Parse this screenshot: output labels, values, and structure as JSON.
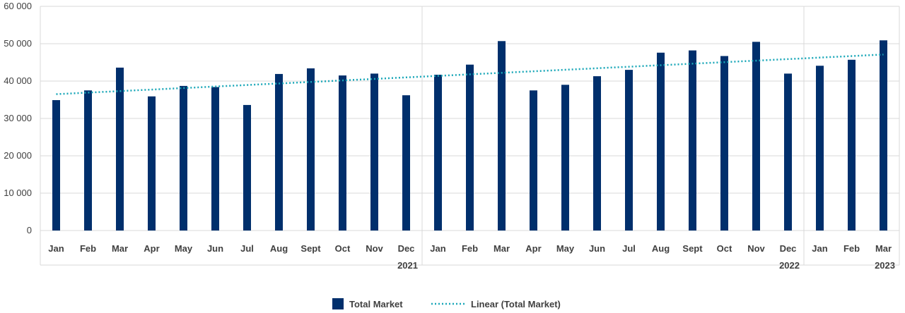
{
  "chart_data": {
    "type": "bar",
    "title": "",
    "xlabel": "",
    "ylabel": "",
    "ylim": [
      0,
      60000
    ],
    "yticks": [
      0,
      10000,
      20000,
      30000,
      40000,
      50000,
      60000
    ],
    "ytick_labels": [
      "0",
      "10 000",
      "20 000",
      "30 000",
      "40 000",
      "50 000",
      "60 000"
    ],
    "grid": true,
    "legend_position": "bottom",
    "categories": [
      "Jan",
      "Feb",
      "Mar",
      "Apr",
      "May",
      "Jun",
      "Jul",
      "Aug",
      "Sept",
      "Oct",
      "Nov",
      "Dec",
      "Jan",
      "Feb",
      "Mar",
      "Apr",
      "May",
      "Jun",
      "Jul",
      "Aug",
      "Sept",
      "Oct",
      "Nov",
      "Dec",
      "Jan",
      "Feb",
      "Mar"
    ],
    "groups": [
      {
        "label": "2021",
        "count": 12
      },
      {
        "label": "2022",
        "count": 12
      },
      {
        "label": "2023",
        "count": 3
      }
    ],
    "series": [
      {
        "name": "Total Market",
        "type": "bar",
        "color": "#002f6c",
        "values": [
          34900,
          37500,
          43600,
          35900,
          38700,
          38400,
          33600,
          41900,
          43400,
          41500,
          42000,
          36200,
          41700,
          44400,
          50700,
          37500,
          39000,
          41300,
          43000,
          47600,
          48200,
          46700,
          50500,
          42000,
          44100,
          45700,
          50900
        ]
      },
      {
        "name": "Linear (Total Market)",
        "type": "trendline",
        "color": "#1aa7b8",
        "start": 36500,
        "end": 47100
      }
    ]
  }
}
